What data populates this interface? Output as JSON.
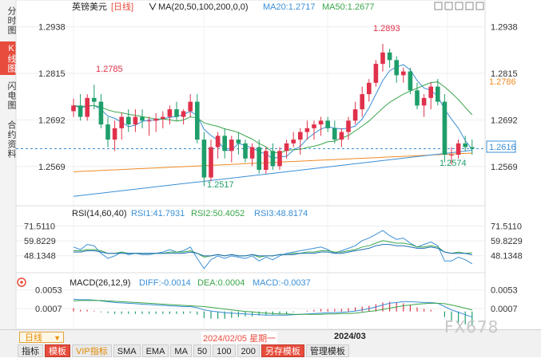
{
  "side_tabs": [
    {
      "label": "分时图",
      "active": false
    },
    {
      "label": "K线图",
      "active": true
    },
    {
      "label": "闪电图",
      "active": false
    },
    {
      "label": "合约资料",
      "active": false
    }
  ],
  "legend": {
    "symbol": "英镑美元",
    "period": "[日线]",
    "ma_setting": "MA(20,50,100,200,0,0)",
    "ma20": "MA20:1.2717",
    "ma50": "MA50:1.2677"
  },
  "rsi_legend": {
    "setting": "RSI(14,60,40)",
    "rsi1": "RSI1:41.7931",
    "rsi2": "RSI2:50.4052",
    "rsi3": "RSI3:48.8174"
  },
  "macd_legend": {
    "setting": "MACD(26,12,9)",
    "diff": "DIFF:-0.0014",
    "dea": "DEA:0.0004",
    "macd": "MACD:-0.0037"
  },
  "annotations": {
    "high1": "1.2785",
    "low1": "1.2517",
    "high2": "1.2893",
    "low2": "1.2574",
    "ma50_tag": "1.2786",
    "last_tag": "1.2616"
  },
  "x_labels": {
    "crosshair_date": "2024/02/05 星期一",
    "partial": "20",
    "month": "2024/03"
  },
  "bottom": {
    "period": "日线",
    "buttons": [
      "指标",
      "模板",
      "VIP指标",
      "SMA",
      "EMA",
      "MA",
      "50",
      "100",
      "200",
      "另存模板",
      "管理模板"
    ]
  },
  "watermark": "FX678",
  "colors": {
    "up": "#e0314b",
    "down": "#1e9e6a",
    "ma20": "#3a8fd6",
    "ma50": "#3aa64a",
    "ma100": "#f08a24",
    "ma200": "#3a8fd6"
  },
  "chart_data": [
    {
      "type": "candlestick",
      "title": "英镑美元 [日线]",
      "y_ticks": [
        1.2938,
        1.2815,
        1.2692,
        1.2569
      ],
      "ylim": [
        1.2478,
        1.2975
      ],
      "reference_line": 1.2616,
      "candles": [
        [
          1.2715,
          1.2748,
          1.27,
          1.273
        ],
        [
          1.273,
          1.276,
          1.269,
          1.27
        ],
        [
          1.27,
          1.276,
          1.269,
          1.275
        ],
        [
          1.275,
          1.2785,
          1.272,
          1.274
        ],
        [
          1.274,
          1.276,
          1.267,
          1.268
        ],
        [
          1.268,
          1.27,
          1.262,
          1.264
        ],
        [
          1.264,
          1.269,
          1.261,
          1.267
        ],
        [
          1.267,
          1.271,
          1.264,
          1.27
        ],
        [
          1.27,
          1.272,
          1.266,
          1.268
        ],
        [
          1.268,
          1.272,
          1.266,
          1.27
        ],
        [
          1.27,
          1.272,
          1.267,
          1.269
        ],
        [
          1.269,
          1.27,
          1.265,
          1.269
        ],
        [
          1.269,
          1.271,
          1.266,
          1.2695
        ],
        [
          1.2695,
          1.2715,
          1.267,
          1.27
        ],
        [
          1.27,
          1.273,
          1.268,
          1.272
        ],
        [
          1.272,
          1.274,
          1.269,
          1.27
        ],
        [
          1.27,
          1.272,
          1.268,
          1.2715
        ],
        [
          1.2715,
          1.276,
          1.27,
          1.274
        ],
        [
          1.274,
          1.276,
          1.263,
          1.264
        ],
        [
          1.264,
          1.266,
          1.2517,
          1.254
        ],
        [
          1.254,
          1.264,
          1.253,
          1.262
        ],
        [
          1.262,
          1.266,
          1.259,
          1.265
        ],
        [
          1.265,
          1.267,
          1.259,
          1.261
        ],
        [
          1.261,
          1.265,
          1.258,
          1.264
        ],
        [
          1.264,
          1.266,
          1.26,
          1.263
        ],
        [
          1.263,
          1.264,
          1.258,
          1.259
        ],
        [
          1.259,
          1.263,
          1.257,
          1.262
        ],
        [
          1.262,
          1.264,
          1.255,
          1.256
        ],
        [
          1.256,
          1.262,
          1.255,
          1.261
        ],
        [
          1.261,
          1.263,
          1.256,
          1.257
        ],
        [
          1.257,
          1.262,
          1.256,
          1.261
        ],
        [
          1.261,
          1.264,
          1.259,
          1.263
        ],
        [
          1.263,
          1.266,
          1.262,
          1.264
        ],
        [
          1.264,
          1.267,
          1.26,
          1.266
        ],
        [
          1.266,
          1.269,
          1.264,
          1.267
        ],
        [
          1.267,
          1.269,
          1.264,
          1.268
        ],
        [
          1.268,
          1.27,
          1.265,
          1.269
        ],
        [
          1.269,
          1.27,
          1.266,
          1.267
        ],
        [
          1.267,
          1.269,
          1.263,
          1.264
        ],
        [
          1.264,
          1.267,
          1.262,
          1.266
        ],
        [
          1.266,
          1.27,
          1.264,
          1.269
        ],
        [
          1.269,
          1.274,
          1.268,
          1.272
        ],
        [
          1.272,
          1.278,
          1.27,
          1.276
        ],
        [
          1.276,
          1.28,
          1.274,
          1.279
        ],
        [
          1.279,
          1.285,
          1.278,
          1.284
        ],
        [
          1.284,
          1.2893,
          1.282,
          1.287
        ],
        [
          1.287,
          1.288,
          1.283,
          1.285
        ],
        [
          1.285,
          1.286,
          1.279,
          1.281
        ],
        [
          1.281,
          1.283,
          1.279,
          1.282
        ],
        [
          1.282,
          1.283,
          1.276,
          1.277
        ],
        [
          1.277,
          1.279,
          1.272,
          1.273
        ],
        [
          1.273,
          1.276,
          1.27,
          1.275
        ],
        [
          1.275,
          1.279,
          1.272,
          1.278
        ],
        [
          1.278,
          1.28,
          1.273,
          1.274
        ],
        [
          1.274,
          1.276,
          1.258,
          1.26
        ],
        [
          1.26,
          1.262,
          1.2574,
          1.26
        ],
        [
          1.26,
          1.264,
          1.259,
          1.263
        ],
        [
          1.263,
          1.265,
          1.261,
          1.262
        ],
        [
          1.262,
          1.264,
          1.26,
          1.2616
        ]
      ]
    },
    {
      "type": "line",
      "title": "RSI(14,60,40)",
      "y_ticks": [
        71.511,
        59.8229,
        48.1348
      ],
      "ylim": [
        36,
        80
      ],
      "series": [
        {
          "name": "RSI1",
          "values": [
            55,
            53,
            57,
            56,
            50,
            46,
            48,
            51,
            49,
            50,
            49,
            49,
            50,
            51,
            53,
            51,
            52,
            55,
            46,
            38,
            45,
            48,
            46,
            48,
            47,
            46,
            48,
            44,
            47,
            45,
            48,
            50,
            51,
            52,
            53,
            54,
            55,
            53,
            50,
            52,
            54,
            56,
            60,
            62,
            65,
            68,
            64,
            61,
            62,
            58,
            55,
            57,
            59,
            56,
            44,
            44,
            47,
            45,
            41.8
          ]
        },
        {
          "name": "RSI2",
          "values": [
            52,
            52,
            53,
            53,
            52,
            50,
            50,
            51,
            50,
            50,
            50,
            50,
            50,
            50,
            51,
            51,
            51,
            52,
            50,
            47,
            48,
            49,
            48,
            49,
            48,
            48,
            49,
            47,
            48,
            48,
            49,
            49,
            50,
            50,
            51,
            51,
            52,
            52,
            51,
            51,
            52,
            53,
            55,
            56,
            58,
            60,
            59,
            58,
            58,
            57,
            55,
            55,
            56,
            55,
            51,
            50,
            51,
            50,
            50.4
          ]
        },
        {
          "name": "RSI3",
          "values": [
            51,
            51,
            52,
            52,
            51,
            50,
            50,
            50,
            50,
            50,
            50,
            50,
            50,
            50,
            50,
            50,
            50,
            51,
            50,
            48,
            48,
            49,
            48,
            49,
            48,
            48,
            49,
            48,
            48,
            48,
            49,
            49,
            49,
            50,
            50,
            50,
            51,
            51,
            50,
            50,
            51,
            52,
            53,
            54,
            56,
            57,
            57,
            56,
            56,
            55,
            54,
            54,
            55,
            54,
            51,
            50,
            50,
            50,
            48.8
          ]
        }
      ]
    },
    {
      "type": "bar",
      "title": "MACD(26,12,9)",
      "y_ticks": [
        0.0053,
        0.0007
      ],
      "ylim": [
        -0.0042,
        0.0068
      ],
      "series": [
        {
          "name": "DIFF",
          "values": [
            0.003,
            0.0029,
            0.0029,
            0.0028,
            0.0026,
            0.0024,
            0.0022,
            0.0021,
            0.002,
            0.0019,
            0.0018,
            0.0017,
            0.0016,
            0.0015,
            0.0014,
            0.0013,
            0.0012,
            0.0012,
            0.0009,
            0.0004,
            0.0001,
            -0.0001,
            -0.0003,
            -0.0004,
            -0.0005,
            -0.0006,
            -0.0007,
            -0.0008,
            -0.0009,
            -0.0009,
            -0.0009,
            -0.0009,
            -0.0008,
            -0.0007,
            -0.0006,
            -0.0005,
            -0.0004,
            -0.0003,
            -0.0003,
            -0.0002,
            -0.0001,
            0.0001,
            0.0004,
            0.0007,
            0.0011,
            0.0016,
            0.002,
            0.0022,
            0.0024,
            0.0024,
            0.0023,
            0.0022,
            0.0022,
            0.002,
            0.0012,
            0.0004,
            -0.0002,
            -0.0008,
            -0.0014
          ]
        },
        {
          "name": "DEA",
          "values": [
            0.0026,
            0.0027,
            0.0027,
            0.0027,
            0.0027,
            0.0026,
            0.0025,
            0.0024,
            0.0023,
            0.0022,
            0.0021,
            0.002,
            0.0019,
            0.0018,
            0.0017,
            0.0016,
            0.0015,
            0.0014,
            0.0013,
            0.0012,
            0.001,
            0.0008,
            0.0006,
            0.0004,
            0.0002,
            0.0,
            -0.0001,
            -0.0003,
            -0.0004,
            -0.0005,
            -0.0006,
            -0.0006,
            -0.0007,
            -0.0007,
            -0.0007,
            -0.0007,
            -0.0007,
            -0.0006,
            -0.0006,
            -0.0005,
            -0.0005,
            -0.0004,
            -0.0002,
            0.0,
            0.0002,
            0.0005,
            0.0008,
            0.0011,
            0.0014,
            0.0016,
            0.0018,
            0.0019,
            0.002,
            0.002,
            0.0019,
            0.0016,
            0.0012,
            0.0008,
            0.0004
          ]
        }
      ]
    }
  ]
}
